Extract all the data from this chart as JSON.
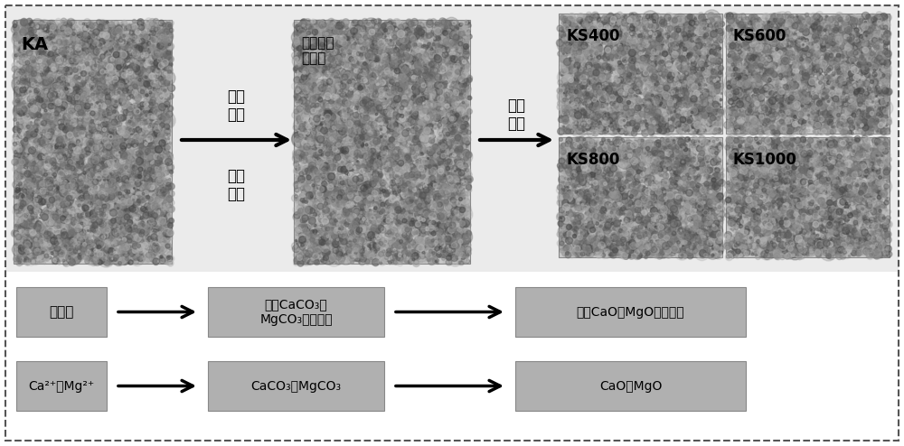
{
  "bg_color": "#ffffff",
  "box_bg": "#b0b0b0",
  "photo_bg": "#c0c0c0",
  "upper_bg": "#e8e8e8",
  "border_dash": "#555555",
  "ka_label": "KA",
  "step1_above": "浸渍\n海水",
  "step1_below": "分离\n干燥",
  "step2_label": "浸渍海水\n干燥后",
  "step3_label": "高温\n锻烧",
  "products": [
    "KS400",
    "KS600",
    "KS800",
    "KS1000"
  ],
  "row1": [
    "高岭土",
    "负载CaCO₃和\nMgCO₃的高岭土",
    "负载CaO和MgO的吸附剂"
  ],
  "row2": [
    "Ca²⁺和Mg²⁺",
    "CaCO₃和MgCO₃",
    "CaO和MgO"
  ],
  "font_size_label": 13,
  "font_size_medium": 12,
  "font_size_small": 10.5,
  "font_size_box": 10
}
